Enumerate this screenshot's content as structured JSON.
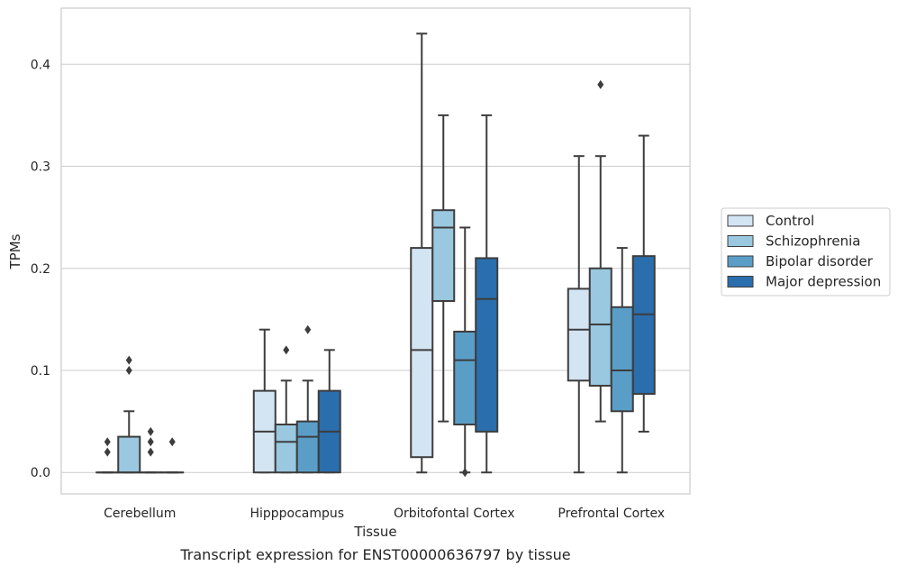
{
  "caption": "Transcript expression for ENST00000636797 by tissue",
  "chart_data": {
    "type": "box",
    "xlabel": "Tissue",
    "ylabel": "TPMs",
    "ylim": [
      -0.021,
      0.455
    ],
    "yticks": [
      0.0,
      0.1,
      0.2,
      0.3,
      0.4
    ],
    "ytick_labels": [
      "0.0",
      "0.1",
      "0.2",
      "0.3",
      "0.4"
    ],
    "grid": "horizontal",
    "legend_position": "right",
    "categories": [
      "Cerebellum",
      "Hipppocampus",
      "Orbitofontal Cortex",
      "Prefrontal Cortex"
    ],
    "series": [
      {
        "name": "Control",
        "color": "#d3e4f3",
        "boxes": [
          {
            "whislo": 0.0,
            "q1": 0.0,
            "med": 0.0,
            "q3": 0.0,
            "whishi": 0.0,
            "fliers": [
              0.02,
              0.03
            ]
          },
          {
            "whislo": 0.0,
            "q1": 0.0,
            "med": 0.04,
            "q3": 0.08,
            "whishi": 0.14,
            "fliers": []
          },
          {
            "whislo": 0.0,
            "q1": 0.015,
            "med": 0.12,
            "q3": 0.22,
            "whishi": 0.43,
            "fliers": []
          },
          {
            "whislo": 0.0,
            "q1": 0.09,
            "med": 0.14,
            "q3": 0.18,
            "whishi": 0.31,
            "fliers": []
          }
        ]
      },
      {
        "name": "Schizophrenia",
        "color": "#9ac8e0",
        "boxes": [
          {
            "whislo": 0.0,
            "q1": 0.0,
            "med": 0.0,
            "q3": 0.035,
            "whishi": 0.06,
            "fliers": [
              0.1,
              0.11
            ]
          },
          {
            "whislo": 0.0,
            "q1": 0.0,
            "med": 0.03,
            "q3": 0.047,
            "whishi": 0.09,
            "fliers": [
              0.12
            ]
          },
          {
            "whislo": 0.05,
            "q1": 0.168,
            "med": 0.24,
            "q3": 0.257,
            "whishi": 0.35,
            "fliers": []
          },
          {
            "whislo": 0.05,
            "q1": 0.085,
            "med": 0.145,
            "q3": 0.2,
            "whishi": 0.31,
            "fliers": [
              0.38
            ]
          }
        ]
      },
      {
        "name": "Bipolar disorder",
        "color": "#5a9ec8",
        "boxes": [
          {
            "whislo": 0.0,
            "q1": 0.0,
            "med": 0.0,
            "q3": 0.0,
            "whishi": 0.0,
            "fliers": [
              0.02,
              0.03,
              0.04
            ]
          },
          {
            "whislo": 0.0,
            "q1": 0.0,
            "med": 0.035,
            "q3": 0.05,
            "whishi": 0.09,
            "fliers": [
              0.14
            ]
          },
          {
            "whislo": 0.0,
            "q1": 0.047,
            "med": 0.11,
            "q3": 0.138,
            "whishi": 0.24,
            "fliers": [
              0.0
            ]
          },
          {
            "whislo": 0.0,
            "q1": 0.06,
            "med": 0.1,
            "q3": 0.162,
            "whishi": 0.22,
            "fliers": []
          }
        ]
      },
      {
        "name": "Major depression",
        "color": "#2a6ead",
        "boxes": [
          {
            "whislo": 0.0,
            "q1": 0.0,
            "med": 0.0,
            "q3": 0.0,
            "whishi": 0.0,
            "fliers": [
              0.03
            ]
          },
          {
            "whislo": 0.0,
            "q1": 0.0,
            "med": 0.04,
            "q3": 0.08,
            "whishi": 0.12,
            "fliers": []
          },
          {
            "whislo": 0.0,
            "q1": 0.04,
            "med": 0.17,
            "q3": 0.21,
            "whishi": 0.35,
            "fliers": []
          },
          {
            "whislo": 0.04,
            "q1": 0.077,
            "med": 0.155,
            "q3": 0.212,
            "whishi": 0.33,
            "fliers": []
          }
        ]
      }
    ]
  }
}
